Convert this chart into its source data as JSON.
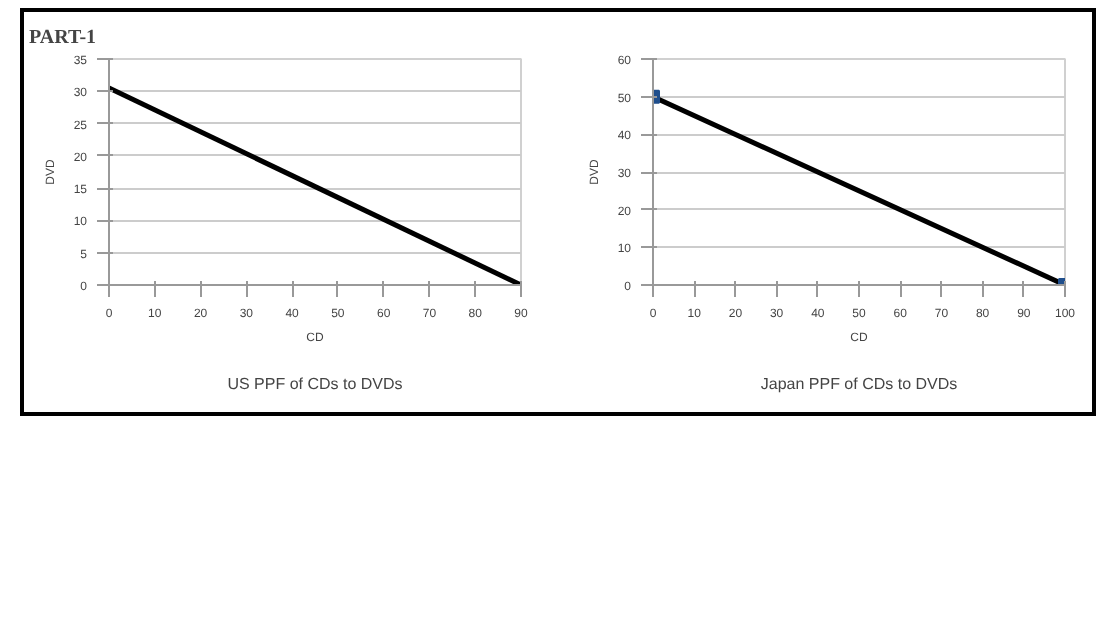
{
  "chart_data": [
    {
      "type": "line",
      "title": "US PPF of CDs to DVDs",
      "xlabel": "CD",
      "ylabel": "DVD",
      "annotations": [
        "PART-1"
      ],
      "x": [
        0,
        90
      ],
      "series": [
        {
          "color": "#000000",
          "values": [
            30.5,
            0
          ]
        }
      ],
      "xlim": [
        0,
        90
      ],
      "ylim": [
        0,
        35
      ],
      "xticks": [
        0,
        10,
        20,
        30,
        40,
        50,
        60,
        70,
        80,
        90
      ],
      "yticks": [
        0,
        5,
        10,
        15,
        20,
        25,
        30,
        35
      ],
      "grid": "y",
      "marker": "none"
    },
    {
      "type": "line",
      "title": "Japan PPF of CDs to DVDs",
      "xlabel": "CD",
      "ylabel": "DVD",
      "x": [
        0,
        100
      ],
      "series": [
        {
          "color": "#000000",
          "values": [
            50,
            0
          ]
        },
        {
          "type": "scatter",
          "color": "#1f4e8c",
          "values": [
            50,
            0
          ],
          "marker": "square"
        }
      ],
      "xlim": [
        0,
        100
      ],
      "ylim": [
        0,
        60
      ],
      "xticks": [
        0,
        10,
        20,
        30,
        40,
        50,
        60,
        70,
        80,
        90,
        100
      ],
      "yticks": [
        0,
        10,
        20,
        30,
        40,
        50,
        60
      ],
      "grid": "y"
    }
  ]
}
